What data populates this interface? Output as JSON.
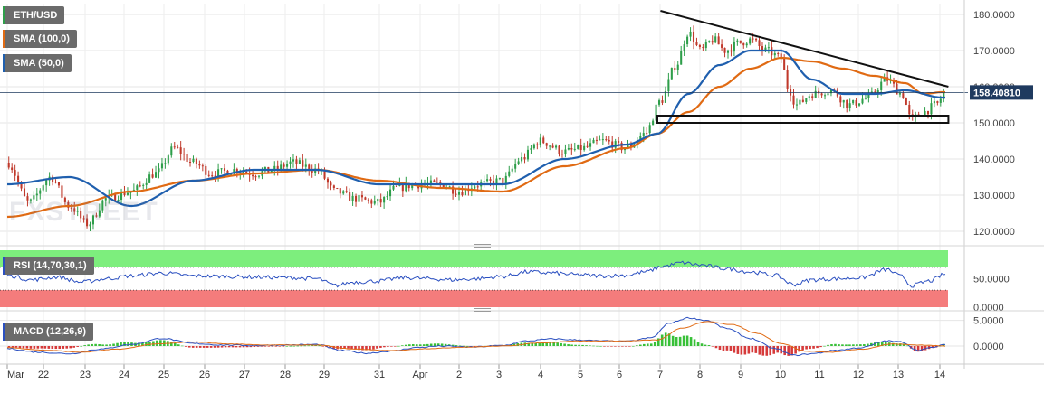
{
  "legends": {
    "symbol": "ETH/USD",
    "sma100": "SMA (100,0)",
    "sma50": "SMA (50,0)",
    "rsi": "RSI (14,70,30,1)",
    "macd": "MACD (12,26,9)"
  },
  "watermark": "FXSTREET",
  "current_price_label": "158.40810",
  "colors": {
    "up_candle": "#2e9e4a",
    "down_candle": "#c0392b",
    "sma100": "#e06a13",
    "sma50": "#1f5fae",
    "trendline": "#111111",
    "rsi_line": "#2a4fc0",
    "rsi_overbought_band": "#7dee7d",
    "rsi_oversold_band": "#f47c7c",
    "macd_line": "#2a4fc0",
    "signal_line": "#e06a13",
    "hist_pos": "#38c038",
    "hist_neg": "#d63a3a",
    "price_label_bg": "#1f3a5f"
  },
  "chart_data": [
    {
      "type": "candlestick",
      "title": "ETH/USD",
      "y_ticks": [
        "180.0000",
        "170.0000",
        "160.0000",
        "150.0000",
        "140.0000",
        "130.0000",
        "120.0000"
      ],
      "ylim": [
        117,
        183
      ],
      "x_ticks": [
        "Mar",
        "22",
        "23",
        "24",
        "25",
        "26",
        "27",
        "28",
        "29",
        "31",
        "Apr",
        "2",
        "3",
        "4",
        "5",
        "6",
        "7",
        "8",
        "9",
        "10",
        "11",
        "12",
        "13",
        "14"
      ],
      "current_price": 158.4081,
      "price_anchors": [
        [
          0,
          139
        ],
        [
          0.35,
          128
        ],
        [
          0.7,
          135
        ],
        [
          1.0,
          127
        ],
        [
          1.3,
          122
        ],
        [
          1.6,
          129
        ],
        [
          2.0,
          131
        ],
        [
          2.4,
          136
        ],
        [
          2.7,
          143
        ],
        [
          3.0,
          139
        ],
        [
          3.3,
          136
        ],
        [
          3.7,
          137
        ],
        [
          4.0,
          136
        ],
        [
          4.3,
          137
        ],
        [
          4.6,
          139
        ],
        [
          5.0,
          137
        ],
        [
          5.3,
          131
        ],
        [
          5.6,
          129
        ],
        [
          6.0,
          128
        ],
        [
          6.3,
          132
        ],
        [
          6.6,
          133
        ],
        [
          7.0,
          133
        ],
        [
          7.3,
          131
        ],
        [
          7.6,
          133
        ],
        [
          8.0,
          134
        ],
        [
          8.3,
          140
        ],
        [
          8.6,
          145
        ],
        [
          9.0,
          142
        ],
        [
          9.3,
          143
        ],
        [
          9.6,
          145
        ],
        [
          10.0,
          143
        ],
        [
          10.3,
          147
        ],
        [
          10.55,
          156
        ],
        [
          10.8,
          166
        ],
        [
          11.0,
          175
        ],
        [
          11.2,
          170
        ],
        [
          11.4,
          173
        ],
        [
          11.6,
          170
        ],
        [
          11.8,
          172
        ],
        [
          12.0,
          173
        ],
        [
          12.25,
          170
        ],
        [
          12.5,
          168
        ],
        [
          12.6,
          160
        ],
        [
          12.75,
          155
        ],
        [
          13.0,
          158
        ],
        [
          13.3,
          159
        ],
        [
          13.6,
          155
        ],
        [
          13.9,
          157
        ],
        [
          14.2,
          162
        ],
        [
          14.45,
          158
        ],
        [
          14.6,
          151
        ],
        [
          14.8,
          153
        ],
        [
          15.0,
          155
        ],
        [
          15.15,
          158.4
        ]
      ],
      "sma100_anchors": [
        [
          0,
          124
        ],
        [
          1.0,
          127
        ],
        [
          2.0,
          131
        ],
        [
          3.0,
          134
        ],
        [
          4.0,
          136
        ],
        [
          5.0,
          137
        ],
        [
          6.0,
          134
        ],
        [
          7.0,
          132
        ],
        [
          8.0,
          131
        ],
        [
          9.0,
          138
        ],
        [
          10.0,
          143
        ],
        [
          10.5,
          147
        ],
        [
          11.0,
          153
        ],
        [
          11.5,
          160
        ],
        [
          12.0,
          165
        ],
        [
          12.5,
          168
        ],
        [
          13.0,
          167
        ],
        [
          13.5,
          165
        ],
        [
          14.0,
          163
        ],
        [
          14.5,
          161
        ],
        [
          14.8,
          158
        ],
        [
          15.1,
          158.5
        ]
      ],
      "sma50_anchors": [
        [
          0,
          133
        ],
        [
          1.0,
          135
        ],
        [
          2.0,
          127
        ],
        [
          3.0,
          134
        ],
        [
          4.0,
          137
        ],
        [
          5.0,
          137
        ],
        [
          6.0,
          133
        ],
        [
          7.0,
          133
        ],
        [
          8.0,
          133
        ],
        [
          9.0,
          140
        ],
        [
          10.0,
          144
        ],
        [
          10.5,
          147
        ],
        [
          11.0,
          158
        ],
        [
          11.5,
          166
        ],
        [
          12.0,
          170
        ],
        [
          12.5,
          170
        ],
        [
          13.0,
          162
        ],
        [
          13.5,
          158
        ],
        [
          14.0,
          158
        ],
        [
          14.5,
          159
        ],
        [
          15.1,
          157
        ]
      ],
      "trendline": [
        [
          10.55,
          181
        ],
        [
          15.2,
          160
        ]
      ],
      "support_band": {
        "start": 10.5,
        "end": 15.2,
        "low": 150,
        "high": 152
      }
    },
    {
      "type": "line",
      "title": "RSI (14,70,30,1)",
      "y_ticks": [
        "50.0000",
        "0.0000"
      ],
      "ylim": [
        0,
        100
      ],
      "overbought": 70,
      "oversold": 30,
      "series_anchors": [
        [
          0,
          56
        ],
        [
          0.4,
          48
        ],
        [
          0.8,
          53
        ],
        [
          1.2,
          44
        ],
        [
          1.6,
          50
        ],
        [
          2.0,
          55
        ],
        [
          2.5,
          60
        ],
        [
          3.0,
          55
        ],
        [
          3.5,
          54
        ],
        [
          4.0,
          53
        ],
        [
          4.5,
          52
        ],
        [
          5.0,
          50
        ],
        [
          5.3,
          38
        ],
        [
          5.6,
          44
        ],
        [
          6.0,
          46
        ],
        [
          6.4,
          52
        ],
        [
          6.8,
          50
        ],
        [
          7.2,
          48
        ],
        [
          7.6,
          50
        ],
        [
          8.0,
          54
        ],
        [
          8.4,
          62
        ],
        [
          8.8,
          60
        ],
        [
          9.2,
          57
        ],
        [
          9.6,
          55
        ],
        [
          10.0,
          56
        ],
        [
          10.3,
          62
        ],
        [
          10.6,
          72
        ],
        [
          10.9,
          78
        ],
        [
          11.2,
          74
        ],
        [
          11.6,
          68
        ],
        [
          12.0,
          62
        ],
        [
          12.4,
          56
        ],
        [
          12.7,
          40
        ],
        [
          13.0,
          48
        ],
        [
          13.4,
          50
        ],
        [
          13.8,
          52
        ],
        [
          14.2,
          66
        ],
        [
          14.45,
          54
        ],
        [
          14.6,
          38
        ],
        [
          14.9,
          46
        ],
        [
          15.15,
          58
        ]
      ]
    },
    {
      "type": "line",
      "title": "MACD (12,26,9)",
      "y_ticks": [
        "5.0000",
        "0.0000"
      ],
      "ylim": [
        -3,
        6
      ],
      "macd_anchors": [
        [
          0,
          -0.5
        ],
        [
          0.5,
          -1.2
        ],
        [
          1.0,
          -1.5
        ],
        [
          1.5,
          -0.6
        ],
        [
          2.0,
          0.3
        ],
        [
          2.5,
          1.5
        ],
        [
          3.0,
          0.5
        ],
        [
          3.5,
          0.2
        ],
        [
          4.0,
          0.1
        ],
        [
          4.5,
          0.2
        ],
        [
          5.0,
          0.3
        ],
        [
          5.4,
          -0.9
        ],
        [
          5.8,
          -1.4
        ],
        [
          6.2,
          -1.0
        ],
        [
          6.6,
          -0.3
        ],
        [
          7.0,
          0.0
        ],
        [
          7.5,
          -0.2
        ],
        [
          8.0,
          0.1
        ],
        [
          8.4,
          1.0
        ],
        [
          8.8,
          1.4
        ],
        [
          9.2,
          1.2
        ],
        [
          9.6,
          1.0
        ],
        [
          10.0,
          0.9
        ],
        [
          10.4,
          1.6
        ],
        [
          10.7,
          4.5
        ],
        [
          11.0,
          5.5
        ],
        [
          11.3,
          5.0
        ],
        [
          11.6,
          3.5
        ],
        [
          12.0,
          1.5
        ],
        [
          12.4,
          -0.5
        ],
        [
          12.7,
          -1.8
        ],
        [
          13.0,
          -1.5
        ],
        [
          13.4,
          -0.8
        ],
        [
          13.8,
          -0.3
        ],
        [
          14.2,
          1.0
        ],
        [
          14.45,
          0.8
        ],
        [
          14.7,
          -0.8
        ],
        [
          15.0,
          -0.2
        ],
        [
          15.15,
          0.4
        ]
      ],
      "signal_anchors": [
        [
          0,
          -0.3
        ],
        [
          0.6,
          -0.8
        ],
        [
          1.2,
          -1.2
        ],
        [
          1.8,
          -0.6
        ],
        [
          2.4,
          0.4
        ],
        [
          3.0,
          0.8
        ],
        [
          3.6,
          0.4
        ],
        [
          4.2,
          0.2
        ],
        [
          5.0,
          0.2
        ],
        [
          5.6,
          -0.6
        ],
        [
          6.2,
          -0.9
        ],
        [
          6.8,
          -0.5
        ],
        [
          7.4,
          -0.2
        ],
        [
          8.0,
          0.0
        ],
        [
          8.6,
          0.6
        ],
        [
          9.2,
          1.0
        ],
        [
          10.0,
          1.0
        ],
        [
          10.5,
          1.2
        ],
        [
          10.9,
          3.5
        ],
        [
          11.3,
          4.8
        ],
        [
          11.7,
          4.2
        ],
        [
          12.1,
          2.5
        ],
        [
          12.5,
          0.5
        ],
        [
          12.9,
          -1.0
        ],
        [
          13.3,
          -1.2
        ],
        [
          13.8,
          -0.6
        ],
        [
          14.3,
          0.4
        ],
        [
          14.7,
          0.2
        ],
        [
          15.15,
          0.0
        ]
      ]
    }
  ]
}
